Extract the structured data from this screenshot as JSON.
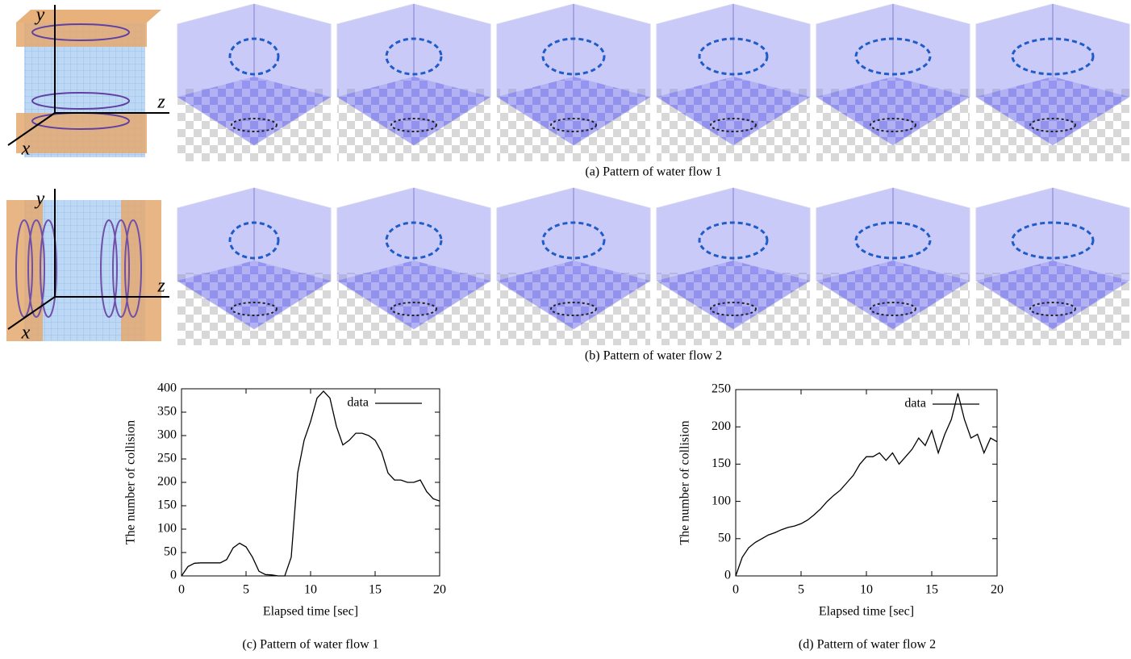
{
  "figures": [
    {
      "caption": "(a) Pattern of water flow 1",
      "axis_labels": [
        "y",
        "z",
        "x"
      ]
    },
    {
      "caption": "(b) Pattern of water flow 2",
      "axis_labels": [
        "y",
        "z",
        "x"
      ]
    }
  ],
  "chart_data": [
    {
      "type": "line",
      "caption": "(c) Pattern of water flow 1",
      "x_label": "Elapsed time [sec]",
      "y_label": "The number of collision",
      "x": [
        0,
        0.5,
        1,
        1.5,
        2,
        2.5,
        3,
        3.5,
        4,
        4.5,
        5,
        5.5,
        6,
        6.5,
        7,
        7.5,
        8,
        8.5,
        9,
        9.5,
        10,
        10.5,
        11,
        11.5,
        12,
        12.5,
        13,
        13.5,
        14,
        14.5,
        15,
        15.5,
        16,
        16.5,
        17,
        17.5,
        18,
        18.5,
        19,
        19.5,
        20
      ],
      "series": [
        {
          "name": "data",
          "color": "#000000",
          "values": [
            0,
            20,
            27,
            28,
            28,
            28,
            28,
            35,
            60,
            70,
            62,
            40,
            10,
            3,
            2,
            0,
            0,
            40,
            220,
            290,
            330,
            380,
            395,
            380,
            320,
            280,
            290,
            305,
            305,
            300,
            290,
            265,
            220,
            205,
            205,
            200,
            200,
            205,
            180,
            165,
            160
          ]
        }
      ],
      "xlim": [
        0,
        20
      ],
      "xticks": [
        0,
        5,
        10,
        15,
        20
      ],
      "ylim": [
        0,
        400
      ],
      "yticks": [
        0,
        50,
        100,
        150,
        200,
        250,
        300,
        350,
        400
      ],
      "legend": "upper right"
    },
    {
      "type": "line",
      "caption": "(d) Pattern of water flow 2",
      "x_label": "Elapsed time [sec]",
      "y_label": "The number of collision",
      "x": [
        0,
        0.5,
        1,
        1.5,
        2,
        2.5,
        3,
        3.5,
        4,
        4.5,
        5,
        5.5,
        6,
        6.5,
        7,
        7.5,
        8,
        8.5,
        9,
        9.5,
        10,
        10.5,
        11,
        11.5,
        12,
        12.5,
        13,
        13.5,
        14,
        14.5,
        15,
        15.5,
        16,
        16.5,
        17,
        17.5,
        18,
        18.5,
        19,
        19.5,
        20
      ],
      "series": [
        {
          "name": "data",
          "color": "#000000",
          "values": [
            0,
            25,
            38,
            45,
            50,
            55,
            58,
            62,
            65,
            67,
            70,
            75,
            82,
            90,
            100,
            108,
            115,
            125,
            135,
            150,
            160,
            160,
            165,
            155,
            165,
            150,
            160,
            170,
            185,
            175,
            195,
            165,
            190,
            210,
            245,
            210,
            185,
            190,
            165,
            185,
            180
          ]
        }
      ],
      "xlim": [
        0,
        20
      ],
      "xticks": [
        0,
        5,
        10,
        15,
        20
      ],
      "ylim": [
        0,
        250
      ],
      "yticks": [
        0,
        50,
        100,
        150,
        200,
        250
      ],
      "legend": "upper right"
    }
  ]
}
